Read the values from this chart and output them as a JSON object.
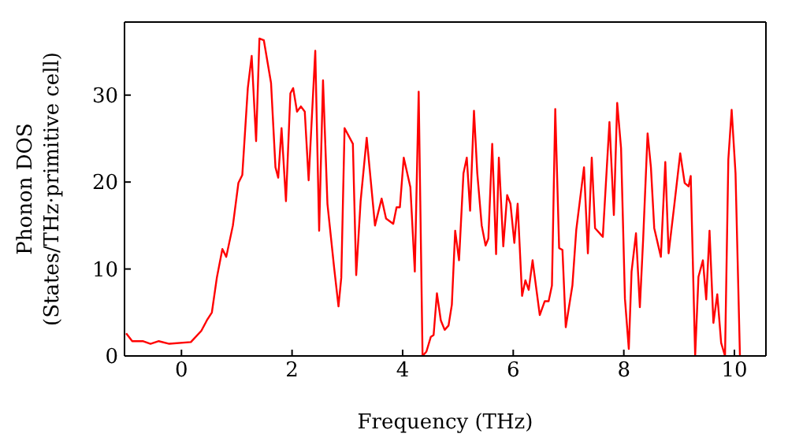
{
  "chart_data": {
    "type": "line",
    "xlabel": "Frequency (THz)",
    "ylabel": "Phonon DOS\n(States/THz·primitive cell)",
    "x": [
      -1.0,
      -0.89,
      -0.7,
      -0.56,
      -0.41,
      -0.22,
      0.17,
      0.36,
      0.46,
      0.55,
      0.64,
      0.74,
      0.81,
      0.93,
      1.03,
      1.1,
      1.2,
      1.27,
      1.35,
      1.41,
      1.49,
      1.62,
      1.7,
      1.75,
      1.81,
      1.89,
      1.97,
      2.02,
      2.09,
      2.16,
      2.23,
      2.3,
      2.42,
      2.49,
      2.56,
      2.64,
      2.76,
      2.84,
      2.89,
      2.95,
      3.1,
      3.16,
      3.24,
      3.35,
      3.5,
      3.62,
      3.7,
      3.83,
      3.89,
      3.95,
      4.02,
      4.14,
      4.22,
      4.29,
      4.36,
      4.43,
      4.51,
      4.56,
      4.62,
      4.69,
      4.76,
      4.83,
      4.89,
      4.95,
      5.02,
      5.1,
      5.16,
      5.22,
      5.29,
      5.35,
      5.43,
      5.5,
      5.55,
      5.62,
      5.69,
      5.74,
      5.82,
      5.89,
      5.95,
      6.02,
      6.08,
      6.16,
      6.22,
      6.28,
      6.35,
      6.48,
      6.57,
      6.64,
      6.7,
      6.76,
      6.83,
      6.89,
      6.95,
      7.07,
      7.14,
      7.28,
      7.35,
      7.42,
      7.48,
      7.62,
      7.74,
      7.82,
      7.88,
      7.95,
      8.02,
      8.09,
      8.14,
      8.22,
      8.29,
      8.35,
      8.43,
      8.49,
      8.55,
      8.67,
      8.75,
      8.81,
      8.91,
      9.02,
      9.1,
      9.17,
      9.21,
      9.29,
      9.35,
      9.43,
      9.49,
      9.55,
      9.62,
      9.69,
      9.76,
      9.83,
      9.89,
      9.95,
      10.02,
      10.1
    ],
    "series": [
      {
        "color": "#ff0000",
        "values": [
          2.6,
          1.7,
          1.7,
          1.4,
          1.7,
          1.4,
          1.6,
          2.9,
          4.1,
          5.0,
          9.0,
          12.3,
          11.4,
          15.0,
          19.9,
          20.8,
          30.8,
          34.5,
          24.7,
          36.5,
          36.3,
          31.4,
          21.7,
          20.5,
          26.2,
          17.8,
          30.2,
          30.8,
          28.1,
          28.7,
          28.1,
          20.2,
          35.1,
          14.4,
          31.7,
          17.5,
          10.2,
          5.7,
          9.0,
          26.2,
          24.4,
          9.3,
          17.8,
          25.1,
          15.0,
          18.1,
          15.8,
          15.2,
          17.1,
          17.1,
          22.8,
          19.4,
          9.7,
          30.4,
          0.0,
          0.5,
          2.2,
          2.4,
          7.2,
          4.1,
          3.0,
          3.5,
          5.9,
          14.4,
          11.0,
          21.0,
          22.8,
          16.7,
          28.2,
          21.0,
          15.0,
          12.7,
          13.5,
          24.4,
          11.7,
          22.8,
          12.6,
          18.5,
          17.5,
          13.0,
          17.5,
          6.9,
          8.7,
          7.6,
          11.0,
          4.7,
          6.3,
          6.3,
          8.1,
          28.4,
          12.4,
          12.2,
          3.3,
          8.1,
          14.5,
          21.7,
          11.8,
          22.8,
          14.7,
          13.7,
          26.9,
          16.2,
          29.1,
          23.9,
          6.6,
          0.8,
          9.7,
          14.1,
          5.6,
          13.5,
          25.6,
          21.7,
          14.7,
          11.4,
          22.3,
          11.8,
          17.2,
          23.3,
          19.9,
          19.5,
          20.7,
          0.0,
          9.1,
          11.0,
          6.5,
          14.4,
          3.8,
          7.1,
          1.5,
          0.0,
          22.6,
          28.3,
          21.0,
          0.0
        ]
      }
    ],
    "xlim": [
      -1.03,
      10.57
    ],
    "ylim": [
      0,
      38.4
    ],
    "xticks": [
      0,
      2,
      4,
      6,
      8,
      10
    ],
    "yticks": [
      0,
      10,
      20,
      30
    ],
    "grid": false,
    "legend": false,
    "marker": "none",
    "line_style": "solid"
  }
}
